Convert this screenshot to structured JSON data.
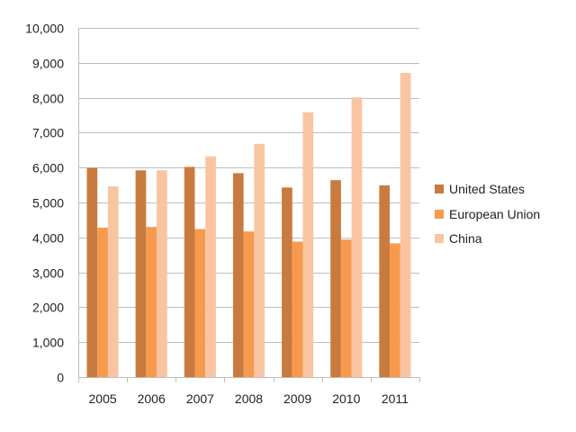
{
  "chart_data": {
    "type": "bar",
    "categories": [
      "2005",
      "2006",
      "2007",
      "2008",
      "2009",
      "2010",
      "2011"
    ],
    "series": [
      {
        "name": "United States",
        "color": "#C97B3F",
        "values": [
          5990,
          5920,
          6020,
          5840,
          5430,
          5640,
          5490
        ]
      },
      {
        "name": "European Union",
        "color": "#F79A4D",
        "values": [
          4280,
          4300,
          4240,
          4170,
          3880,
          3940,
          3830
        ]
      },
      {
        "name": "China",
        "color": "#F9C4A1",
        "values": [
          5460,
          5920,
          6320,
          6680,
          7580,
          8010,
          8710
        ]
      }
    ],
    "ylim": [
      0,
      10000
    ],
    "yticks": [
      "0",
      "1,000",
      "2,000",
      "3,000",
      "4,000",
      "5,000",
      "6,000",
      "7,000",
      "8,000",
      "9,000",
      "10,000"
    ],
    "grid": "horizontal",
    "legend_position": "right"
  }
}
